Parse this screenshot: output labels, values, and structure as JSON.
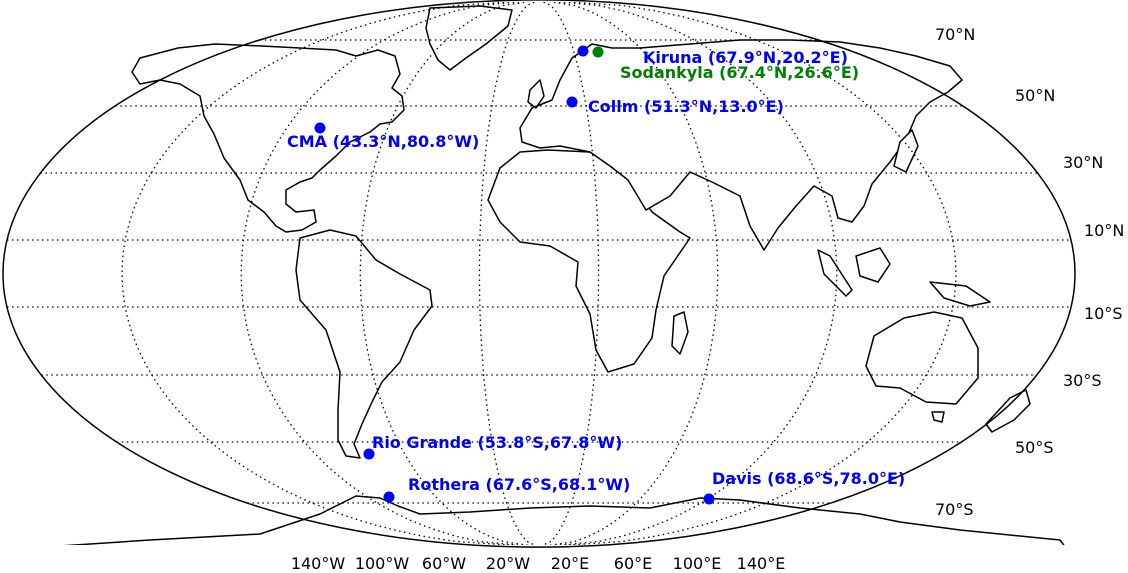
{
  "map": {
    "projection": "Robinson",
    "colors": {
      "land": "#ffffff",
      "coast": "#000000",
      "grid": "#000000",
      "blue": "#0000ff",
      "green": "#008000"
    },
    "lat_labels": [
      "70°N",
      "50°N",
      "30°N",
      "10°N",
      "10°S",
      "30°S",
      "50°S",
      "70°S"
    ],
    "lon_labels": [
      "140°W",
      "100°W",
      "60°W",
      "20°W",
      "20°E",
      "60°E",
      "100°E",
      "140°E"
    ]
  },
  "stations": [
    {
      "id": "kiruna",
      "label": "Kiruna (67.9°N,20.2°E)",
      "lat": 67.9,
      "lon": 20.2,
      "color": "#0000ff"
    },
    {
      "id": "sodankyla",
      "label": "Sodankyla (67.4°N,26.6°E)",
      "lat": 67.4,
      "lon": 26.6,
      "color": "#008000"
    },
    {
      "id": "collm",
      "label": "Collm (51.3°N,13.0°E)",
      "lat": 51.3,
      "lon": 13.0,
      "color": "#0000ff"
    },
    {
      "id": "cma",
      "label": "CMA  (43.3°N,80.8°W)",
      "lat": 43.3,
      "lon": -80.8,
      "color": "#0000ff"
    },
    {
      "id": "rio-grande",
      "label": "Rio Grande (53.8°S,67.8°W)",
      "lat": -53.8,
      "lon": -67.8,
      "color": "#0000ff"
    },
    {
      "id": "rothera",
      "label": "Rothera (67.6°S,68.1°W)",
      "lat": -67.6,
      "lon": -68.1,
      "color": "#0000ff"
    },
    {
      "id": "davis",
      "label": "Davis (68.6°S,78.0°E)",
      "lat": -68.6,
      "lon": 78.0,
      "color": "#0000ff"
    }
  ]
}
